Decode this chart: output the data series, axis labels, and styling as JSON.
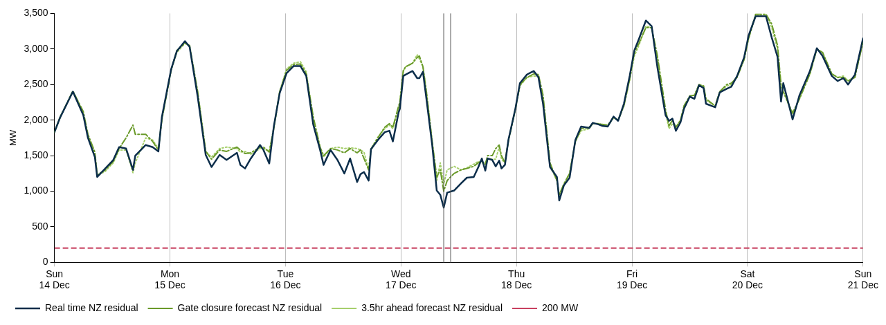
{
  "chart_data": {
    "type": "line",
    "ylabel": "MW",
    "x": [
      "--12-14T00:00",
      "--12-14T01:12",
      "--12-14T03:50",
      "--12-14T06:00",
      "--12-14T06:58",
      "--12-14T08:24",
      "--12-14T08:53",
      "--12-14T10:34",
      "--12-14T12:14",
      "--12-14T13:26",
      "--12-14T14:53",
      "--12-14T16:19",
      "--12-14T16:48",
      "--12-14T18:58",
      "--12-14T20:24",
      "--12-14T21:36",
      "--12-14T22:19",
      "--12-15T00:14",
      "--12-15T01:26",
      "--12-15T03:07",
      "--12-15T04:05",
      "--12-15T05:46",
      "--12-15T07:26",
      "--12-15T08:38",
      "--12-15T10:19",
      "--12-15T11:46",
      "--12-15T13:55",
      "--12-15T14:38",
      "--12-15T15:36",
      "--12-15T16:48",
      "--12-15T18:43",
      "--12-15T19:26",
      "--12-15T20:38",
      "--12-15T21:36",
      "--12-15T22:48",
      "--12-16T00:14",
      "--12-16T01:41",
      "--12-16T03:07",
      "--12-16T04:19",
      "--12-16T05:46",
      "--12-16T07:12",
      "--12-16T07:55",
      "--12-16T09:22",
      "--12-16T10:48",
      "--12-16T12:14",
      "--12-16T13:26",
      "--12-16T14:53",
      "--12-16T15:36",
      "--12-16T16:19",
      "--12-16T17:17",
      "--12-16T17:46",
      "--12-16T19:12",
      "--12-16T20:38",
      "--12-16T21:36",
      "--12-16T22:19",
      "--12-16T23:31",
      "--12-16T23:46",
      "--12-17T00:29",
      "--12-17T00:58",
      "--12-17T02:24",
      "--12-17T03:22",
      "--12-17T03:50",
      "--12-17T04:34",
      "--12-17T05:17",
      "--12-17T06:29",
      "--12-17T07:26",
      "--12-17T08:10",
      "--12-17T08:53",
      "--12-17T09:36",
      "--12-17T11:02",
      "--12-17T12:29",
      "--12-17T13:41",
      "--12-17T15:07",
      "--12-17T16:05",
      "--12-17T16:48",
      "--12-17T17:31",
      "--12-17T18:00",
      "--12-17T18:58",
      "--12-17T19:41",
      "--12-17T20:24",
      "--12-17T20:53",
      "--12-17T21:36",
      "--12-17T22:19",
      "--12-17T23:46",
      "--12-18T00:43",
      "--12-18T02:10",
      "--12-18T03:36",
      "--12-18T04:34",
      "--12-18T05:31",
      "--12-18T06:58",
      "--12-18T08:24",
      "--12-18T08:53",
      "--12-18T09:50",
      "--12-18T11:02",
      "--12-18T12:14",
      "--12-18T13:26",
      "--12-18T15:07",
      "--12-18T15:50",
      "--12-18T17:02",
      "--12-18T17:46",
      "--12-18T18:58",
      "--12-18T20:10",
      "--12-18T21:07",
      "--12-18T22:19",
      "--12-18T23:31",
      "--12-19T00:29",
      "--12-19T01:26",
      "--12-19T02:53",
      "--12-19T04:05",
      "--12-19T05:17",
      "--12-19T06:58",
      "--12-19T07:41",
      "--12-19T08:24",
      "--12-19T09:07",
      "--12-19T10:05",
      "--12-19T10:48",
      "--12-19T12:00",
      "--12-19T12:58",
      "--12-19T13:55",
      "--12-19T14:53",
      "--12-19T15:22",
      "--12-19T17:17",
      "--12-19T18:14",
      "--12-19T19:41",
      "--12-19T20:38",
      "--12-19T21:50",
      "--12-19T23:17",
      "--12-20T00:14",
      "--12-20T01:41",
      "--12-20T03:50",
      "--12-20T05:02",
      "--12-20T06:14",
      "--12-20T06:58",
      "--12-20T07:26",
      "--12-20T09:22",
      "--12-20T10:48",
      "--12-20T12:58",
      "--12-20T14:24",
      "--12-20T15:36",
      "--12-20T17:31",
      "--12-20T18:43",
      "--12-20T19:55",
      "--12-20T20:53",
      "--12-20T22:19",
      "--12-21T00:00"
    ],
    "series": [
      {
        "name": "Real time NZ residual",
        "color": "#0b2d4a",
        "line_style": "solid",
        "values": [
          1830,
          2040,
          2400,
          2070,
          1750,
          1480,
          1200,
          1320,
          1440,
          1620,
          1600,
          1300,
          1500,
          1650,
          1620,
          1560,
          2040,
          2710,
          2970,
          3110,
          3030,
          2330,
          1510,
          1340,
          1510,
          1440,
          1540,
          1370,
          1320,
          1460,
          1650,
          1580,
          1390,
          1920,
          2380,
          2660,
          2760,
          2760,
          2620,
          1940,
          1580,
          1370,
          1580,
          1440,
          1250,
          1460,
          1130,
          1240,
          1270,
          1150,
          1590,
          1720,
          1830,
          1850,
          1700,
          2110,
          2160,
          2620,
          2640,
          2690,
          2590,
          2590,
          2680,
          2300,
          1650,
          1010,
          950,
          770,
          980,
          1010,
          1110,
          1190,
          1200,
          1340,
          1460,
          1290,
          1460,
          1440,
          1350,
          1430,
          1320,
          1370,
          1720,
          2160,
          2520,
          2640,
          2690,
          2600,
          2230,
          1340,
          1200,
          870,
          1080,
          1190,
          1720,
          1910,
          1890,
          1960,
          1940,
          1920,
          1910,
          2050,
          1990,
          2230,
          2620,
          2980,
          3140,
          3400,
          3320,
          2740,
          2070,
          1990,
          2020,
          1850,
          1970,
          2160,
          2330,
          2300,
          2490,
          2450,
          2230,
          2180,
          2390,
          2440,
          2470,
          2620,
          2880,
          3190,
          3460,
          3460,
          3160,
          2890,
          2260,
          2520,
          2010,
          2350,
          2690,
          3010,
          2900,
          2620,
          2550,
          2590,
          2500,
          2640,
          3150
        ]
      },
      {
        "name": "Gate closure forecast NZ residual",
        "color": "#6a9a2a",
        "line_style": "dashdot",
        "values": [
          1830,
          2040,
          2410,
          2120,
          1800,
          1550,
          1230,
          1300,
          1420,
          1600,
          1750,
          1930,
          1800,
          1800,
          1700,
          1580,
          2000,
          2700,
          2980,
          3080,
          3050,
          2400,
          1560,
          1450,
          1580,
          1560,
          1620,
          1580,
          1530,
          1540,
          1620,
          1620,
          1550,
          1900,
          2400,
          2700,
          2780,
          2790,
          2650,
          2050,
          1620,
          1500,
          1600,
          1580,
          1540,
          1600,
          1540,
          1580,
          1460,
          1300,
          1580,
          1750,
          1900,
          1950,
          1900,
          2200,
          2250,
          2700,
          2750,
          2800,
          2880,
          2900,
          2750,
          2400,
          1700,
          1200,
          1300,
          1000,
          1150,
          1250,
          1300,
          1320,
          1350,
          1400,
          1420,
          1380,
          1500,
          1500,
          1600,
          1650,
          1500,
          1400,
          1700,
          2150,
          2500,
          2600,
          2650,
          2640,
          2350,
          1400,
          1150,
          950,
          1100,
          1250,
          1700,
          1880,
          1900,
          1950,
          1950,
          1940,
          1930,
          2040,
          2000,
          2200,
          2580,
          2950,
          3080,
          3300,
          3300,
          2900,
          2150,
          1920,
          2000,
          1900,
          2000,
          2200,
          2340,
          2350,
          2500,
          2480,
          2300,
          2200,
          2400,
          2500,
          2520,
          2600,
          2850,
          3150,
          3490,
          3490,
          3350,
          3050,
          2500,
          2400,
          2100,
          2300,
          2650,
          3000,
          2950,
          2650,
          2600,
          2600,
          2550,
          2600,
          3100
        ]
      },
      {
        "name": "3.5hr ahead forecast NZ residual",
        "color": "#a6cf6c",
        "line_style": "dotted",
        "values": [
          1830,
          2050,
          2400,
          2100,
          1780,
          1520,
          1220,
          1280,
          1400,
          1580,
          1580,
          1260,
          1400,
          1750,
          1720,
          1600,
          2010,
          2700,
          2950,
          3080,
          3040,
          2380,
          1560,
          1480,
          1600,
          1620,
          1600,
          1550,
          1560,
          1520,
          1600,
          1600,
          1560,
          1880,
          2400,
          2720,
          2800,
          2820,
          2680,
          2000,
          1600,
          1480,
          1600,
          1620,
          1600,
          1610,
          1600,
          1580,
          1550,
          1300,
          1600,
          1760,
          1880,
          1930,
          1880,
          2150,
          2250,
          2680,
          2750,
          2800,
          2920,
          2860,
          2750,
          2400,
          1700,
          1150,
          1400,
          1100,
          1300,
          1350,
          1300,
          1330,
          1380,
          1420,
          1400,
          1400,
          1450,
          1450,
          1450,
          1620,
          1450,
          1400,
          1720,
          2150,
          2480,
          2600,
          2620,
          2620,
          2300,
          1350,
          1150,
          950,
          1100,
          1250,
          1700,
          1850,
          1880,
          1950,
          1950,
          1930,
          1920,
          2030,
          2000,
          2200,
          2560,
          2900,
          3050,
          3320,
          3300,
          2850,
          2100,
          1880,
          1950,
          1900,
          2000,
          2180,
          2340,
          2350,
          2480,
          2480,
          2280,
          2200,
          2400,
          2480,
          2500,
          2620,
          2850,
          3150,
          3470,
          3480,
          3300,
          3000,
          2450,
          2400,
          2080,
          2300,
          2650,
          3000,
          2950,
          2650,
          2600,
          2620,
          2550,
          2620,
          3100
        ]
      }
    ],
    "ref_lines": [
      {
        "axis": "y",
        "value": 200,
        "label": "200 MW",
        "color": "#c8405f",
        "line_style": "dashed"
      },
      {
        "axis": "x",
        "value": "--12-17T08:53",
        "color": "#555555"
      },
      {
        "axis": "x",
        "value": "--12-17T10:19",
        "color": "#555555"
      }
    ],
    "xlim": [
      "--12-14",
      "--12-21"
    ],
    "xticks": [
      {
        "value": "--12-14",
        "label": "Sun\n14 Dec"
      },
      {
        "value": "--12-15",
        "label": "Mon\n15 Dec"
      },
      {
        "value": "--12-16",
        "label": "Tue\n16 Dec"
      },
      {
        "value": "--12-17",
        "label": "Wed\n17 Dec"
      },
      {
        "value": "--12-18",
        "label": "Thu\n18 Dec"
      },
      {
        "value": "--12-19",
        "label": "Fri\n19 Dec"
      },
      {
        "value": "--12-20",
        "label": "Sat\n20 Dec"
      },
      {
        "value": "--12-21",
        "label": "Sun\n21 Dec"
      }
    ],
    "ylim": [
      0,
      3500
    ],
    "yticks": [
      0,
      500,
      {
        "value": 1000,
        "label": "1,000"
      },
      {
        "value": 1500,
        "label": "1,500"
      },
      {
        "value": 2000,
        "label": "2,000"
      },
      {
        "value": 2500,
        "label": "2,500"
      },
      {
        "value": 3000,
        "label": "3,000"
      },
      {
        "value": 3500,
        "label": "3,500"
      }
    ],
    "grid": "x",
    "legend": "bottom left"
  }
}
